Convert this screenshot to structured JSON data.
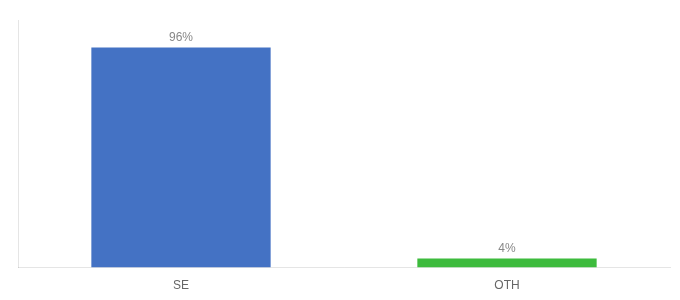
{
  "chart_data": {
    "type": "bar",
    "categories": [
      "SE",
      "OTH"
    ],
    "values": [
      96,
      4
    ],
    "value_labels": [
      "96%",
      "4%"
    ],
    "colors": [
      "#4472c4",
      "#3dbb3d"
    ],
    "ylim": [
      0,
      108
    ],
    "data_labels": true,
    "tick_labels": "x",
    "grid": false
  }
}
